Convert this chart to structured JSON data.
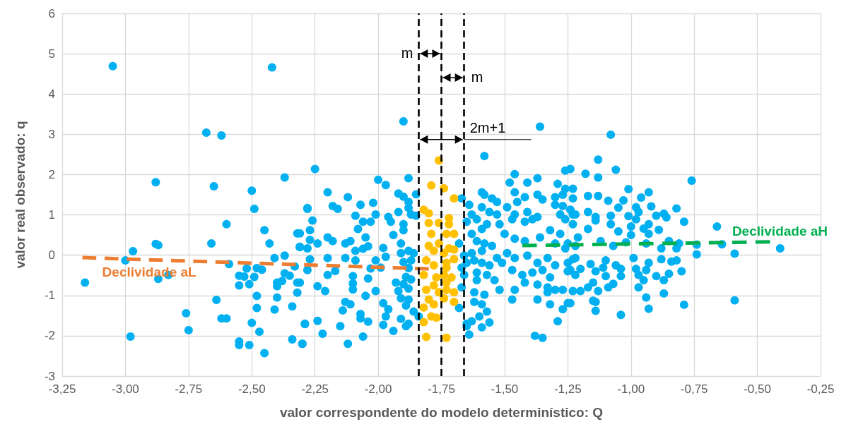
{
  "chart_data": {
    "type": "scatter",
    "xlabel": "valor correspondente do modelo determinístico: Q",
    "ylabel": "valor real observado: q",
    "xlim": [
      -3.25,
      -0.25
    ],
    "ylim": [
      -3,
      6
    ],
    "xticks": [
      {
        "value": -3.25,
        "label": "-3,25"
      },
      {
        "value": -3,
        "label": "-3,00"
      },
      {
        "value": -2.75,
        "label": "-2,75"
      },
      {
        "value": -2.5,
        "label": "-2,50"
      },
      {
        "value": -2.25,
        "label": "-2,25"
      },
      {
        "value": -2,
        "label": "-2,00"
      },
      {
        "value": -1.75,
        "label": "-1,75"
      },
      {
        "value": -1.5,
        "label": "-1,50"
      },
      {
        "value": -1.25,
        "label": "-1,25"
      },
      {
        "value": -1,
        "label": "-1,00"
      },
      {
        "value": -0.75,
        "label": "-0,75"
      },
      {
        "value": -0.5,
        "label": "-0,50"
      },
      {
        "value": -0.25,
        "label": "-0,25"
      }
    ],
    "yticks": [
      -3,
      -2,
      -1,
      0,
      1,
      2,
      3,
      4,
      5,
      6
    ],
    "grid": true,
    "marker": "circle",
    "series": [
      {
        "color": "#00b0f0",
        "x": [
          -3.05,
          -2.42,
          -2.68,
          -2.62,
          -2.88,
          -2.65,
          -2.37,
          -2.5,
          -2.49,
          -2.6,
          -2.45,
          -2.66,
          -2.43,
          -2.88,
          -2.87,
          -2.97,
          -3,
          -3.16,
          -2.87,
          -2.83,
          -2.98,
          -2.76,
          -2.75,
          -2.64,
          -2.62,
          -2.6,
          -2.59,
          -2.55,
          -2.55,
          -2.52,
          -2.53,
          -2.51,
          -2.49,
          -2.48,
          -2.46,
          -2.48,
          -2.48,
          -2.5,
          -2.47,
          -2.55,
          -2.55,
          -2.51,
          -2.45,
          -2.41,
          -2.37,
          -2.4,
          -2.4,
          -2.38,
          -2.37,
          -2.35,
          -2.33,
          -2.32,
          -2.32,
          -2.4,
          -2.41,
          -2.34,
          -2.29,
          -2.34,
          -2.3,
          -2.32,
          -2.31,
          -2.28,
          -2.28,
          -2.25,
          -2.28,
          -2.26,
          -2.31,
          -2.27,
          -2.27,
          -2.24,
          -2.31,
          -2.27,
          -2.2,
          -2.28,
          -2.31,
          -2.24,
          -2.21,
          -2.2,
          -2.17,
          -2.2,
          -2.18,
          -2.16,
          -2.2,
          -2.18,
          -2.12,
          -2.09,
          -2.08,
          -2.06,
          -2.07,
          -2.02,
          -2.01,
          -2.03,
          -2.13,
          -2.11,
          -2.09,
          -2.06,
          -2.04,
          -2.05,
          -2.13,
          -2.09,
          -2.1,
          -2.1,
          -2.1,
          -2.05,
          -2.13,
          -2.11,
          -2.14,
          -2.07,
          -2.07,
          -2.04,
          -2.12,
          -2.06,
          -2.22,
          -2.24,
          -2.29,
          -2.3,
          -2.15,
          -2,
          -1.97,
          -2.01,
          -1.98,
          -1.99,
          -1.97,
          -2.03,
          -2.04,
          -2.01,
          -1.98,
          -1.96,
          -1.97,
          -1.98,
          -1.94,
          -1.94,
          -1.96,
          -1.95,
          -1.92,
          -1.93,
          -1.92,
          -1.9,
          -1.88,
          -1.92,
          -1.9,
          -1.88,
          -1.85,
          -1.88,
          -1.87,
          -1.85,
          -1.9,
          -1.9,
          -1.91,
          -1.91,
          -1.88,
          -1.86,
          -1.9,
          -1.87,
          -1.88,
          -1.89,
          -1.87,
          -1.9,
          -1.88,
          -1.91,
          -1.89,
          -1.88,
          -1.86,
          -1.84,
          -1.91,
          -1.89,
          -1.88,
          -1.67,
          -1.58,
          -1.64,
          -1.63,
          -1.65,
          -1.68,
          -1.66,
          -1.67,
          -1.65,
          -1.66,
          -1.68,
          -1.67,
          -1.65,
          -1.64,
          -1.59,
          -1.58,
          -1.55,
          -1.53,
          -1.59,
          -1.56,
          -1.53,
          -1.61,
          -1.57,
          -1.59,
          -1.63,
          -1.61,
          -1.58,
          -1.55,
          -1.59,
          -1.63,
          -1.62,
          -1.59,
          -1.56,
          -1.53,
          -1.51,
          -1.61,
          -1.57,
          -1.54,
          -1.61,
          -1.62,
          -1.58,
          -1.52,
          -1.62,
          -1.59,
          -1.57,
          -1.6,
          -1.56,
          -1.59,
          -1.65,
          -1.63,
          -1.36,
          -1.48,
          -1.46,
          -1.41,
          -1.37,
          -1.46,
          -1.42,
          -1.37,
          -1.35,
          -1.49,
          -1.45,
          -1.46,
          -1.41,
          -1.37,
          -1.52,
          -1.47,
          -1.42,
          -1.39,
          -1.5,
          -1.46,
          -1.42,
          -1.36,
          -1.32,
          -1.28,
          -1.49,
          -1.46,
          -1.41,
          -1.37,
          -1.33,
          -1.3,
          -1.25,
          -1.47,
          -1.43,
          -1.39,
          -1.35,
          -1.32,
          -1.42,
          -1.37,
          -1.33,
          -1.3,
          -1.46,
          -1.47,
          -1.37,
          -1.33,
          -1.27,
          -1.32,
          -1.27,
          -1.24,
          -1.29,
          -1.38,
          -1.35,
          -1.26,
          -1.24,
          -1.29,
          -1.26,
          -1.23,
          -1.27,
          -1.3,
          -1.23,
          -1.3,
          -1.27,
          -1.24,
          -1.28,
          -1.22,
          -1.26,
          -1.23,
          -1.3,
          -1.26,
          -1.22,
          -1.22,
          -1.24,
          -1.22,
          -1.2,
          -1.08,
          -1.13,
          -1.06,
          -1.18,
          -1.13,
          -0.76,
          -1.01,
          -0.93,
          -0.96,
          -1.17,
          -1.13,
          -1.09,
          -1.03,
          -1.05,
          -0.98,
          -0.92,
          -0.82,
          -1.23,
          -1.17,
          -1.14,
          -1.08,
          -1.01,
          -0.97,
          -0.9,
          -0.87,
          -0.86,
          -1.14,
          -1.08,
          -0.98,
          -0.79,
          -1.17,
          -1.05,
          -1,
          -0.95,
          -0.89,
          -0.93,
          -0.66,
          -1.21,
          -1.12,
          -1,
          -0.93,
          -0.85,
          -1.25,
          -1.07,
          -1.02,
          -0.94,
          -0.88,
          -0.82,
          -0.74,
          -0.64,
          -0.59,
          -0.41,
          -0.74,
          -0.81,
          -1.23,
          -1.16,
          -1.1,
          -0.99,
          -0.93,
          -0.88,
          -0.84,
          -0.82,
          -1.25,
          -1.2,
          -1.14,
          -1.11,
          -1.06,
          -1.04,
          -0.98,
          -0.94,
          -0.8,
          -1.1,
          -1.04,
          -0.97,
          -0.95,
          -0.9,
          -0.85,
          -0.87,
          -1.23,
          -1.15,
          -1.17,
          -1.13,
          -1.09,
          -1.07,
          -0.97,
          -1.25,
          -1.15,
          -1.14,
          -0.94,
          -0.87,
          -0.79,
          -0.59,
          -1.14,
          -1.04,
          -0.93
        ],
        "values": [
          4.69,
          4.66,
          3.04,
          2.97,
          1.81,
          1.71,
          1.93,
          1.6,
          1.15,
          0.77,
          0.62,
          0.29,
          0.29,
          0.28,
          0.25,
          0.1,
          -0.13,
          -0.68,
          -0.59,
          -0.49,
          -2.02,
          -1.44,
          -1.86,
          -1.11,
          -1.57,
          -1.57,
          -0.22,
          -0.51,
          -0.75,
          -0.33,
          -0.53,
          -0.72,
          -0.54,
          -0.32,
          -0.36,
          -1.01,
          -1.31,
          -1.68,
          -1.9,
          -2.14,
          -2.23,
          -2.23,
          -2.43,
          -0.07,
          -0.01,
          -0.68,
          -0.77,
          -0.64,
          -0.45,
          -0.51,
          -0.28,
          -0.68,
          -0.93,
          -1.05,
          -1.35,
          -1.27,
          -1.71,
          -2.09,
          -2.2,
          0.54,
          0.21,
          1.15,
          0.17,
          2.14,
          1.17,
          0.86,
          0.54,
          0.62,
          0.38,
          0.29,
          0.2,
          -0.1,
          -0.07,
          -0.37,
          -0.68,
          -0.77,
          -0.89,
          -0.49,
          -0.39,
          1.56,
          1.22,
          1.15,
          0.44,
          0.35,
          1.44,
          0.98,
          0.65,
          0.83,
          1.25,
          1.3,
          1.01,
          0.83,
          0.29,
          0.35,
          0.11,
          0.16,
          0.22,
          0.44,
          -0.07,
          -0.13,
          -0.52,
          -0.7,
          -0.85,
          -1.01,
          -1.16,
          -1.22,
          -1.37,
          -1.46,
          -1.57,
          -1.65,
          -2.2,
          -2.02,
          -1.95,
          -1.63,
          -1.7,
          -2.2,
          -1.76,
          1.87,
          1.74,
          -0.13,
          0.18,
          -0.31,
          -0.04,
          -0.33,
          -0.58,
          -0.89,
          -1.19,
          -1.34,
          -1.52,
          -1.73,
          -1.88,
          0.5,
          0.95,
          0.83,
          1.07,
          -0.68,
          -0.89,
          3.32,
          1.91,
          1.53,
          1.45,
          1.32,
          1.51,
          1.17,
          1.01,
          0.98,
          0.77,
          0.62,
          0.29,
          0.05,
          0.11,
          0.05,
          -0.17,
          -0.13,
          -0.32,
          -0.54,
          -0.6,
          -0.72,
          -0.83,
          -1.07,
          -1.25,
          -1.1,
          -1.4,
          -1.52,
          -1.58,
          -1.76,
          -1.7,
          1.41,
          2.46,
          1.25,
          1.01,
          0.83,
          0.29,
          -0.01,
          -0.31,
          -0.19,
          -0.49,
          -1.31,
          -0.8,
          -1.7,
          -1.97,
          1.56,
          1.5,
          1.41,
          1.32,
          1.19,
          1.07,
          1.01,
          0.89,
          0.77,
          0.65,
          0.53,
          0.35,
          0.29,
          0.23,
          0.11,
          0.05,
          -0.13,
          -0.19,
          -0.25,
          -0.07,
          -0.19,
          -0.43,
          -0.49,
          -0.62,
          -0.62,
          -0.92,
          -0.98,
          -0.86,
          -1.16,
          -1.22,
          -1.4,
          -1.52,
          -1.67,
          -1.79,
          -1.76,
          -1.64,
          3.19,
          1.8,
          2.01,
          1.8,
          1.91,
          1.56,
          1.44,
          1.5,
          1.38,
          1.19,
          1.32,
          1.01,
          1.07,
          0.95,
          0.77,
          0.89,
          0.83,
          0.89,
          0.53,
          0.41,
          0.35,
          0.44,
          0.62,
          0.53,
          0.05,
          -0.07,
          -0.01,
          -0.19,
          -0.07,
          -0.25,
          -0.19,
          -0.37,
          -0.49,
          -0.43,
          -0.37,
          -0.55,
          -0.68,
          -0.73,
          -0.8,
          -0.86,
          -0.86,
          -1.1,
          -1.1,
          -0.92,
          -0.86,
          -1.22,
          -1.34,
          -1.19,
          -1.64,
          -2,
          -2.05,
          2.1,
          2.14,
          1.77,
          1.65,
          1.65,
          1.5,
          1.44,
          1.41,
          1.25,
          1.22,
          1.13,
          1.01,
          1.01,
          0.89,
          0.77,
          0.29,
          0.17,
          0.23,
          -0.07,
          -0.37,
          -0.49,
          -0.89,
          2.99,
          2.37,
          2.12,
          2.02,
          1.93,
          1.85,
          1.64,
          1.56,
          1.43,
          1.47,
          1.47,
          1.35,
          1.36,
          1.18,
          1.19,
          1.21,
          1.16,
          1.01,
          1.07,
          0.95,
          0.98,
          0.97,
          1.07,
          0.98,
          1.03,
          0.94,
          0.86,
          0.77,
          0.89,
          0.83,
          0.65,
          0.59,
          0.71,
          0.66,
          0.63,
          0.77,
          0.71,
          0.44,
          0.35,
          0.5,
          0.53,
          0.35,
          0.29,
          0.23,
          0.32,
          0.29,
          0.17,
          0.17,
          0.26,
          0.27,
          0.04,
          0.17,
          0.02,
          0.29,
          -0.1,
          -0.22,
          -0.13,
          -0.07,
          -0.19,
          -0.1,
          -0.16,
          -0.13,
          -0.4,
          -0.34,
          -0.4,
          -0.31,
          -0.25,
          -0.34,
          -0.34,
          -0.37,
          -0.4,
          -0.52,
          -0.52,
          -0.49,
          -0.62,
          -0.52,
          -0.46,
          -0.62,
          -0.89,
          -0.68,
          -0.8,
          -0.89,
          -0.8,
          -0.71,
          -0.8,
          -1.19,
          -1.13,
          -1.16,
          -1.05,
          -0.95,
          -1.23,
          -1.12,
          -1.38,
          -1.48,
          -1.33
        ]
      },
      {
        "color": "#ffc000",
        "x": [
          -1.76,
          -1.79,
          -1.74,
          -1.7,
          -1.82,
          -1.8,
          -1.72,
          -1.8,
          -1.76,
          -1.72,
          -1.7,
          -1.79,
          -1.73,
          -1.8,
          -1.76,
          -1.72,
          -1.7,
          -1.74,
          -1.78,
          -1.81,
          -1.78,
          -1.73,
          -1.7,
          -1.82,
          -1.77,
          -1.74,
          -1.71,
          -1.73,
          -1.81,
          -1.76,
          -1.73,
          -1.7,
          -1.78,
          -1.73,
          -1.8,
          -1.74,
          -1.7,
          -1.78,
          -1.82,
          -1.79,
          -1.77,
          -1.82,
          -1.81,
          -1.73
        ],
        "values": [
          2.35,
          1.73,
          1.66,
          1.41,
          1.13,
          1.04,
          0.92,
          0.8,
          0.8,
          0.77,
          0.53,
          0.53,
          0.53,
          0.23,
          0.29,
          0.17,
          0.14,
          0.05,
          0.11,
          -0.13,
          -0.25,
          -0.19,
          -0.1,
          -0.49,
          -0.55,
          -0.49,
          -0.55,
          -0.31,
          -0.86,
          -0.92,
          -0.86,
          -0.92,
          -0.75,
          -0.68,
          -1.1,
          -1.07,
          -1.16,
          -1.22,
          -1.3,
          -1.52,
          -1.55,
          -1.66,
          -2.03,
          -2.05
        ]
      },
      {
        "type": "line",
        "name": "Declividade aL",
        "color": "#ed7d31",
        "line_style": "dashed",
        "marker": "none",
        "x": [
          -3.17,
          -1.8
        ],
        "values": [
          -0.06,
          -0.34
        ]
      },
      {
        "type": "line",
        "name": "Declividade aH",
        "color": "#00b050",
        "line_style": "dashed",
        "marker": "none",
        "x": [
          -1.43,
          -0.45
        ],
        "values": [
          0.24,
          0.33
        ]
      }
    ],
    "ref_lines": [
      {
        "axis": "x",
        "value": -1.84,
        "color": "#000000",
        "line_style": "dashed"
      },
      {
        "axis": "x",
        "value": -1.75,
        "color": "#000000",
        "line_style": "dashed"
      },
      {
        "axis": "x",
        "value": -1.66,
        "color": "#000000",
        "line_style": "dashed"
      }
    ],
    "annotations": [
      "m",
      "m",
      {
        "text": "2m+1",
        "x": -1.75,
        "y": 2.87
      }
    ]
  }
}
